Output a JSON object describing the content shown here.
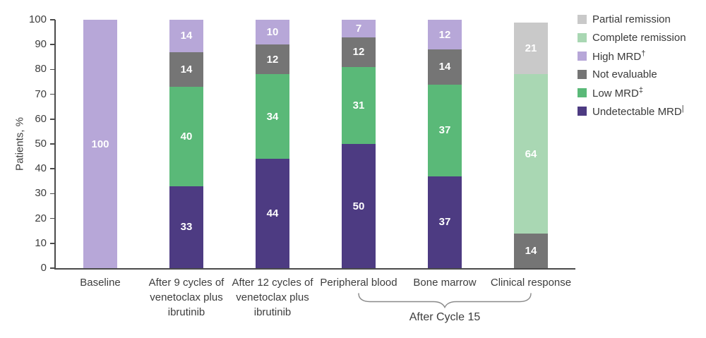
{
  "chart_data": {
    "type": "bar",
    "stacked": true,
    "title": "",
    "ylabel": "Patients, %",
    "xlabel": "",
    "ylim": [
      0,
      100
    ],
    "yticks": [
      0,
      10,
      20,
      30,
      40,
      50,
      60,
      70,
      80,
      90,
      100
    ],
    "grid": false,
    "legend_position": "right",
    "legend": [
      {
        "label": "Partial remission",
        "sup": "",
        "color": "#c9c9c9"
      },
      {
        "label": "Complete remission",
        "sup": "",
        "color": "#a9d7b3"
      },
      {
        "label": "High MRD",
        "sup": "†",
        "color": "#b7a7d8"
      },
      {
        "label": "Not evaluable",
        "sup": "",
        "color": "#757575"
      },
      {
        "label": "Low MRD",
        "sup": "‡",
        "color": "#5ab978"
      },
      {
        "label": "Undetectable MRD",
        "sup": "|",
        "color": "#4d3b82"
      }
    ],
    "bars": [
      {
        "category": "Baseline",
        "label_lines": [
          "Baseline"
        ],
        "segments": [
          {
            "series": "High MRD",
            "value": 100
          }
        ]
      },
      {
        "category": "After 9 cycles of venetoclax plus ibrutinib",
        "label_lines": [
          "After 9 cycles of",
          "venetoclax plus",
          "ibrutinib"
        ],
        "segments": [
          {
            "series": "Undetectable MRD",
            "value": 33
          },
          {
            "series": "Low MRD",
            "value": 40
          },
          {
            "series": "Not evaluable",
            "value": 14
          },
          {
            "series": "High MRD",
            "value": 14
          }
        ]
      },
      {
        "category": "After 12 cycles of venetoclax plus ibrutinib",
        "label_lines": [
          "After 12 cycles of",
          "venetoclax plus",
          "ibrutinib"
        ],
        "segments": [
          {
            "series": "Undetectable MRD",
            "value": 44
          },
          {
            "series": "Low MRD",
            "value": 34
          },
          {
            "series": "Not evaluable",
            "value": 12
          },
          {
            "series": "High MRD",
            "value": 10
          }
        ]
      },
      {
        "category": "Peripheral blood",
        "label_lines": [
          "Peripheral blood"
        ],
        "segments": [
          {
            "series": "Undetectable MRD",
            "value": 50
          },
          {
            "series": "Low MRD",
            "value": 31
          },
          {
            "series": "Not evaluable",
            "value": 12
          },
          {
            "series": "High MRD",
            "value": 7
          }
        ]
      },
      {
        "category": "Bone marrow",
        "label_lines": [
          "Bone marrow"
        ],
        "segments": [
          {
            "series": "Undetectable MRD",
            "value": 37
          },
          {
            "series": "Low MRD",
            "value": 37
          },
          {
            "series": "Not evaluable",
            "value": 14
          },
          {
            "series": "High MRD",
            "value": 12
          }
        ]
      },
      {
        "category": "Clinical response",
        "label_lines": [
          "Clinical response"
        ],
        "segments": [
          {
            "series": "Not evaluable",
            "value": 14
          },
          {
            "series": "Complete remission",
            "value": 64
          },
          {
            "series": "Partial remission",
            "value": 21
          }
        ]
      }
    ],
    "annotation": {
      "label": "After Cycle 15",
      "spans_categories": [
        "Peripheral blood",
        "Bone marrow",
        "Clinical response"
      ]
    }
  },
  "style": {
    "axis_color": "#4b4b4b",
    "text_color": "#3d3d3d",
    "value_label_color": "#ffffff",
    "background": "#ffffff"
  }
}
